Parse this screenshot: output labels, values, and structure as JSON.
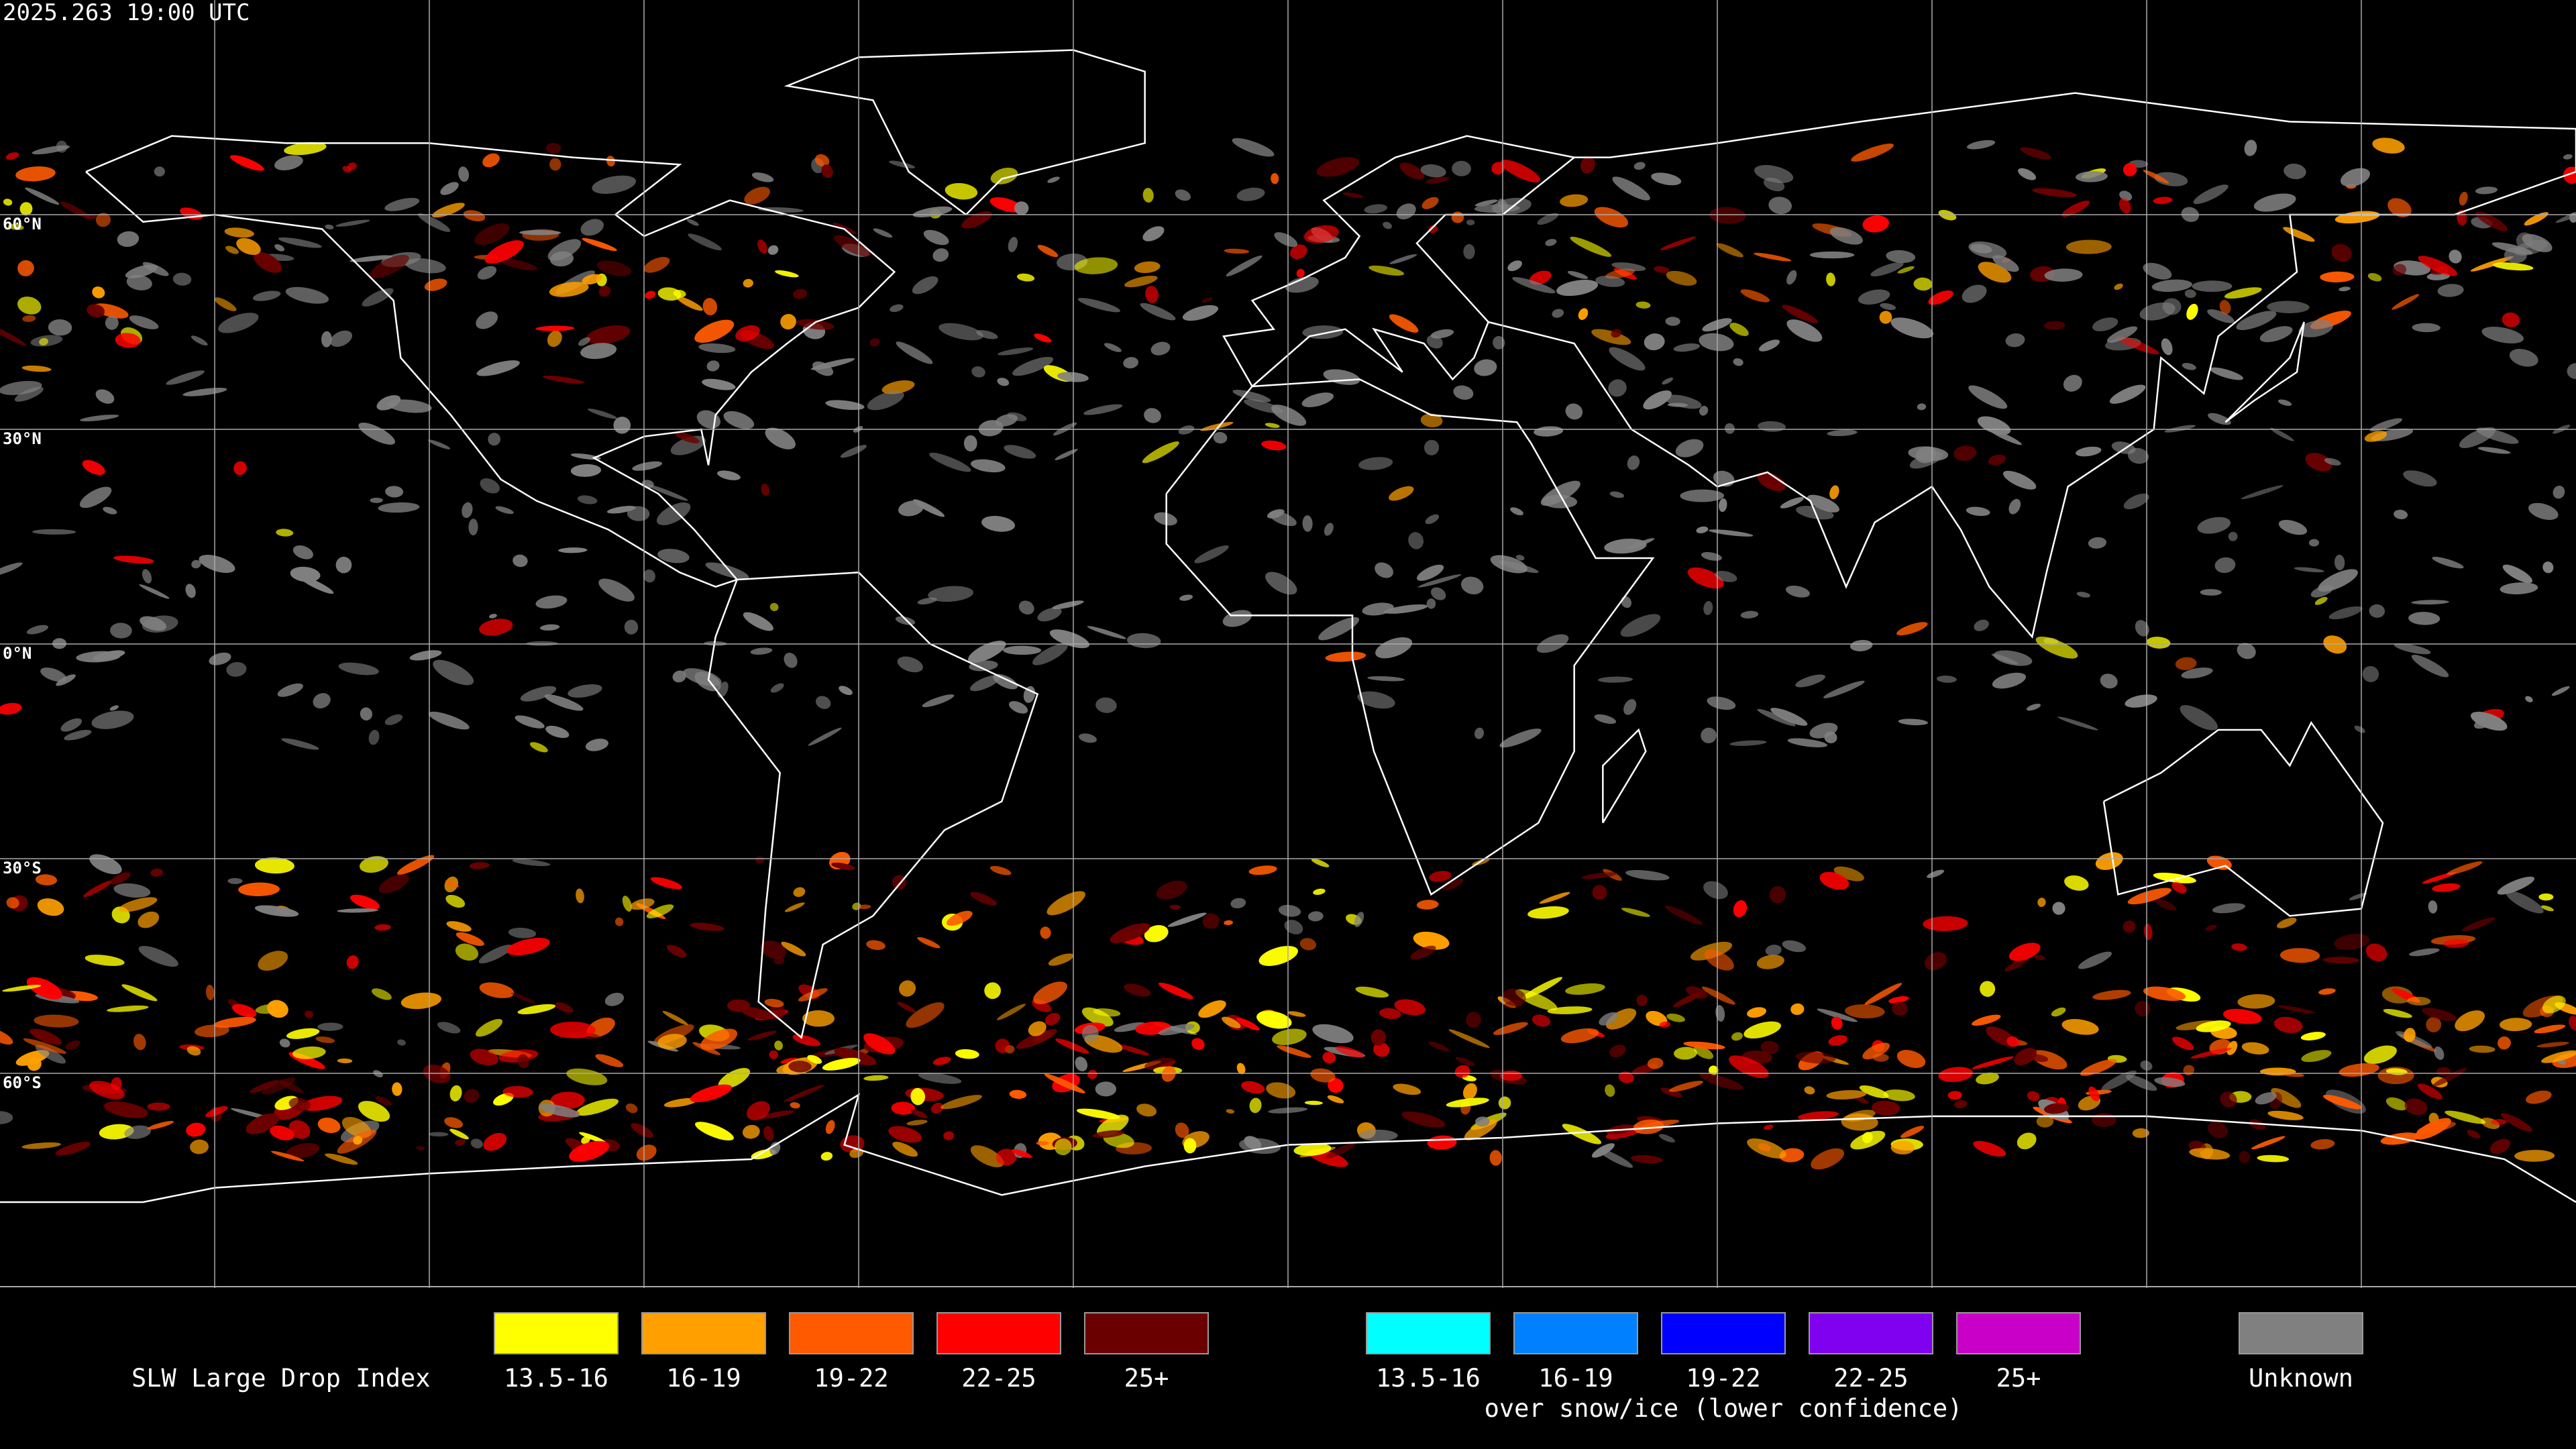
{
  "timestamp": "2025.263 19:00 UTC",
  "latitude_labels": [
    "60°N",
    "30°N",
    "0°N",
    "30°S",
    "60°S"
  ],
  "legend": {
    "title": "SLW Large Drop Index",
    "groups": [
      {
        "items": [
          {
            "label": "13.5-16",
            "color": "#ffff00"
          },
          {
            "label": "16-19",
            "color": "#ffa000"
          },
          {
            "label": "19-22",
            "color": "#ff5a00"
          },
          {
            "label": "22-25",
            "color": "#ff0000"
          },
          {
            "label": "25+",
            "color": "#6b0000"
          }
        ]
      },
      {
        "items": [
          {
            "label": "13.5-16",
            "color": "#00ffff"
          },
          {
            "label": "16-19",
            "color": "#0080ff"
          },
          {
            "label": "19-22",
            "color": "#0000ff"
          },
          {
            "label": "22-25",
            "color": "#8000f0"
          },
          {
            "label": "25+",
            "color": "#c800c8"
          }
        ],
        "caption": "over snow/ice (lower confidence)"
      },
      {
        "items": [
          {
            "label": "Unknown",
            "color": "#808080"
          }
        ]
      }
    ]
  }
}
